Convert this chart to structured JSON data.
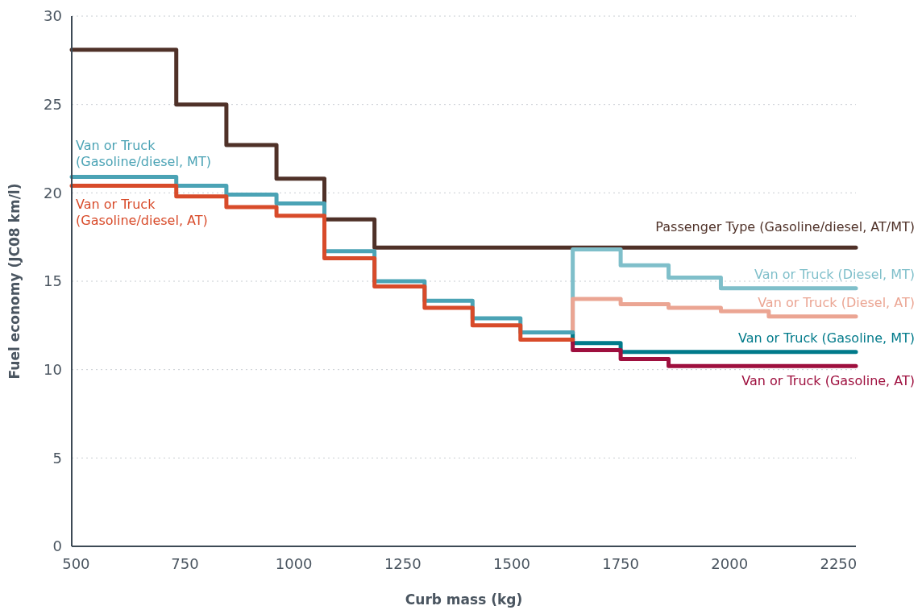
{
  "chart_data": {
    "type": "step",
    "xlabel": "Curb mass (kg)",
    "ylabel": "Fuel economy (JC08 km/l)",
    "xlim": [
      490,
      2290
    ],
    "xticks": [
      500,
      750,
      1000,
      1250,
      1500,
      1750,
      2000,
      2250
    ],
    "ylim": [
      0,
      30
    ],
    "yticks": [
      0,
      5,
      10,
      15,
      20,
      25,
      30
    ],
    "grid": "y",
    "line_style": "solid",
    "marker": "none",
    "series": [
      {
        "name": "Passenger Type (Gasoline/diesel, AT/MT)",
        "color": "#4f3128",
        "x": [
          490,
          730,
          845,
          960,
          1070,
          1185,
          2290
        ],
        "values": [
          28.1,
          25.0,
          22.7,
          20.8,
          18.5,
          16.9,
          16.9
        ]
      },
      {
        "name": "Van or Truck (Diesel, MT)",
        "color": "#7fbfca",
        "x": [
          1640,
          1640,
          1750,
          1860,
          1980,
          2290
        ],
        "values": [
          12.1,
          16.8,
          15.9,
          15.2,
          14.6,
          14.6
        ]
      },
      {
        "name": "Van or Truck (Diesel, AT)",
        "color": "#eba593",
        "x": [
          1640,
          1640,
          1750,
          1860,
          1980,
          2090,
          2290
        ],
        "values": [
          11.7,
          14.0,
          13.7,
          13.5,
          13.3,
          13.0,
          13.0
        ]
      },
      {
        "name": "Van or Truck (Gasoline, MT)",
        "color": "#007a8a",
        "x": [
          1640,
          1640,
          1750,
          2290
        ],
        "values": [
          12.1,
          11.5,
          11.0,
          11.0
        ]
      },
      {
        "name": "Van or Truck (Gasoline, AT)",
        "color": "#9e0f3e",
        "x": [
          1640,
          1640,
          1750,
          1860,
          2290
        ],
        "values": [
          11.7,
          11.1,
          10.6,
          10.2,
          10.2
        ]
      },
      {
        "name": "Van or Truck (Gasoline/diesel, MT)",
        "color": "#4ba3b5",
        "x": [
          490,
          730,
          845,
          960,
          1070,
          1185,
          1300,
          1410,
          1520,
          1640
        ],
        "values": [
          20.9,
          20.4,
          19.9,
          19.4,
          16.7,
          15.0,
          13.9,
          12.9,
          12.1,
          12.1
        ]
      },
      {
        "name": "Van or Truck (Gasoline/diesel, AT)",
        "color": "#d84b2a",
        "x": [
          490,
          730,
          845,
          960,
          1070,
          1185,
          1300,
          1410,
          1520,
          1640
        ],
        "values": [
          20.4,
          19.8,
          19.2,
          18.7,
          16.3,
          14.7,
          13.5,
          12.5,
          11.7,
          11.7
        ]
      }
    ]
  }
}
